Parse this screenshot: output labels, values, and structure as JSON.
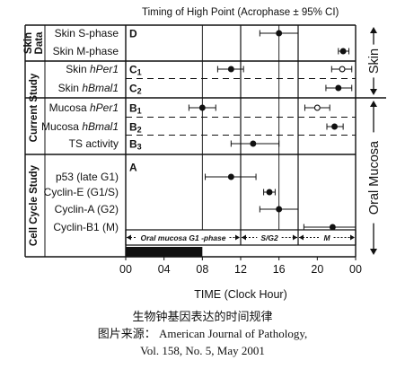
{
  "chart_data": {
    "type": "scatter",
    "title": "Timing of  High Point (Acrophase ± 95% CI)",
    "xlabel": "TIME (Clock Hour)",
    "xlim": [
      0,
      24
    ],
    "x_ticks": [
      "00",
      "04",
      "08",
      "12",
      "16",
      "20",
      "00"
    ],
    "groups": [
      {
        "name": "Skin Data",
        "rows": [
          "D1",
          "D2"
        ]
      },
      {
        "name": "Current Study",
        "rows": [
          "C1",
          "C2",
          "B1",
          "B2",
          "B3"
        ]
      },
      {
        "name": "Cell Cycle Study",
        "rows": [
          "A1",
          "A2",
          "A3",
          "A4"
        ]
      }
    ],
    "side_labels": {
      "skin": "Skin",
      "oral": "Oral Mucosa"
    },
    "panel_labels": {
      "D": "D",
      "C1": "C1",
      "C2": "C2",
      "B1": "B1",
      "B2": "B2",
      "B3": "B3",
      "A": "A"
    },
    "rows": [
      {
        "id": "D1",
        "label": "Skin S-phase",
        "points": [
          {
            "x": 16.0,
            "lo": 14.0,
            "hi": 18.0,
            "filled": true
          }
        ]
      },
      {
        "id": "D2",
        "label": "Skin  M-phase",
        "points": [
          {
            "x": 22.7,
            "lo": 22.2,
            "hi": 23.3,
            "filled": true
          }
        ]
      },
      {
        "id": "C1",
        "label": "Skin hPer1",
        "points": [
          {
            "x": 11.0,
            "lo": 9.6,
            "hi": 12.3,
            "filled": true
          },
          {
            "x": 22.6,
            "lo": 21.5,
            "hi": 23.6,
            "filled": false
          }
        ]
      },
      {
        "id": "C2",
        "label": "Skin hBmal1",
        "points": [
          {
            "x": 22.2,
            "lo": 20.9,
            "hi": 23.6,
            "filled": true
          }
        ]
      },
      {
        "id": "B1",
        "label": "Mucosa hPer1",
        "points": [
          {
            "x": 8.0,
            "lo": 6.6,
            "hi": 9.4,
            "filled": true
          },
          {
            "x": 20.0,
            "lo": 18.7,
            "hi": 21.3,
            "filled": false
          }
        ]
      },
      {
        "id": "B2",
        "label": "Mucosa hBmal1",
        "points": [
          {
            "x": 21.8,
            "lo": 21.0,
            "hi": 22.7,
            "filled": true
          }
        ]
      },
      {
        "id": "B3",
        "label": "TS activity",
        "points": [
          {
            "x": 13.3,
            "lo": 11.0,
            "hi": 16.0,
            "filled": true
          }
        ]
      },
      {
        "id": "A1",
        "label": "p53 (late G1)",
        "points": [
          {
            "x": 11.0,
            "lo": 8.3,
            "hi": 13.6,
            "filled": true
          }
        ]
      },
      {
        "id": "A2",
        "label": "Cyclin-E (G1/S)",
        "points": [
          {
            "x": 15.0,
            "lo": 14.4,
            "hi": 15.6,
            "filled": true
          }
        ]
      },
      {
        "id": "A3",
        "label": "Cyclin-A (G2)",
        "points": [
          {
            "x": 16.0,
            "lo": 14.0,
            "hi": 18.0,
            "filled": true
          }
        ]
      },
      {
        "id": "A4",
        "label": "Cyclin-B1 (M)",
        "points": [
          {
            "x": 21.6,
            "lo": 18.6,
            "hi": 24.0,
            "filled": true
          }
        ]
      }
    ],
    "phases": [
      {
        "label": "Oral mucosa G1 -phase",
        "start": 0,
        "end": 12
      },
      {
        "label": "S/G2",
        "start": 12,
        "end": 18
      },
      {
        "label": "M",
        "start": 18,
        "end": 24
      }
    ],
    "dark_bar": {
      "start": 0,
      "end": 8
    }
  },
  "caption": {
    "line1": "生物钟基因表达的时间规律",
    "line2": "图片来源： American Journal of Pathology,",
    "line3": "Vol. 158, No. 5, May 2001"
  }
}
